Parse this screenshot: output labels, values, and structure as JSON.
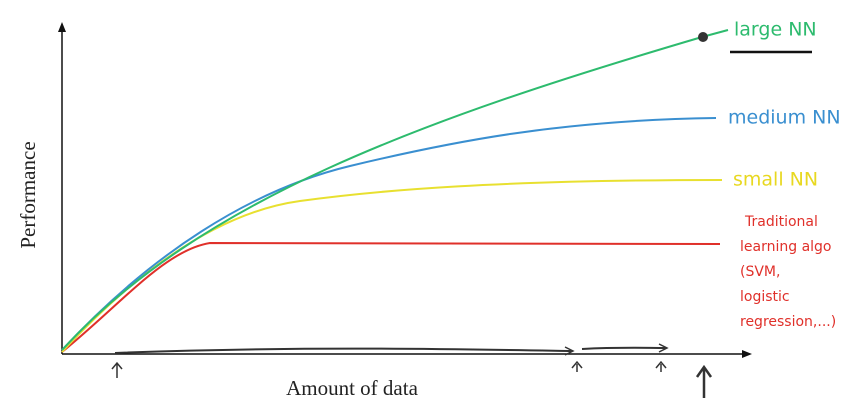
{
  "axes": {
    "y_label": "Performance",
    "x_label": "Amount of data"
  },
  "curves": {
    "large": "large NN",
    "medium": "medium NN",
    "small": "small NN",
    "traditional": [
      "Traditional",
      "learning algo",
      "(SVM,",
      "logistic",
      "regression,...)"
    ]
  }
}
